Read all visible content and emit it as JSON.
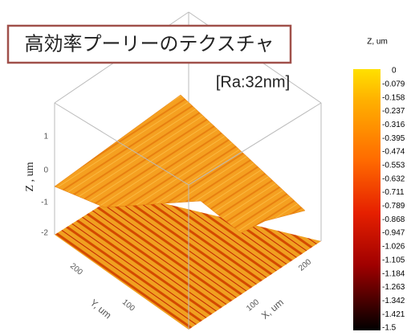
{
  "title": "高効率プーリーのテクスチャ",
  "annotation": "[Ra:32nm]",
  "plot": {
    "z_axis_label": "Z , um",
    "y_axis_label": "Y, um",
    "x_axis_label": "X, um",
    "z_ticks": [
      "1",
      "0",
      "-1",
      "-2"
    ],
    "y_ticks": [
      "200",
      "100"
    ],
    "x_ticks": [
      "100",
      "200"
    ]
  },
  "colorbar": {
    "title": "Z, um",
    "labels": [
      "0",
      "-0.079",
      "-0.158",
      "-0.237",
      "-0.316",
      "-0.395",
      "-0.474",
      "-0.553",
      "-0.632",
      "-0.711",
      "-0.789",
      "-0.868",
      "-0.947",
      "-1.026",
      "-1.105",
      "-1.184",
      "-1.263",
      "-1.342",
      "-1.421",
      "-1.5"
    ]
  }
}
